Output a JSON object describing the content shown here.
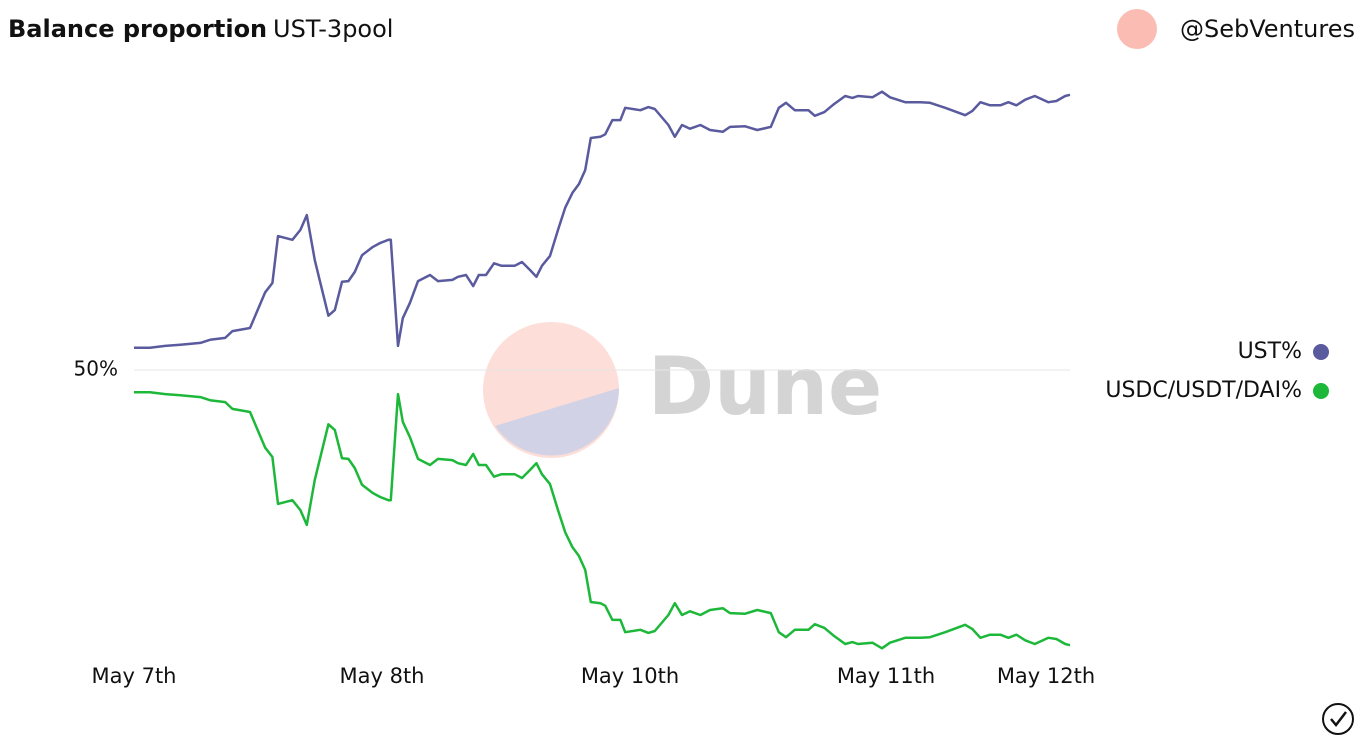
{
  "chart_data": {
    "type": "line",
    "title": "Balance proportion",
    "subtitle": "UST-3pool",
    "author": "@SebVentures",
    "watermark": "Dune",
    "x": [
      0,
      2,
      3.9,
      5.8,
      8.3,
      9.5,
      11.4,
      12.3,
      14.5,
      16.4,
      17.3,
      18,
      19.8,
      20.8,
      21.6,
      22.6,
      24.3,
      25.1,
      26,
      26.8,
      27.6,
      28.5,
      29.8,
      30.8,
      31.8,
      32.1,
      33,
      33.6,
      34.5,
      35.5,
      37,
      38,
      39.8,
      40.5,
      41.5,
      42.4,
      43.1,
      44,
      45,
      45.9,
      47.6,
      48.5,
      49.5,
      50.3,
      51,
      52,
      53,
      53.9,
      54.8,
      55.6,
      56.4,
      57.1,
      58.3,
      58.9,
      59.8,
      60.8,
      61.4,
      63.3,
      64.3,
      65.1,
      66.8,
      67.6,
      68.5,
      69.5,
      70.8,
      72,
      73.6,
      74.5,
      76.4,
      77.9,
      79.6,
      80.6,
      81.5,
      82.6,
      84.3,
      85.1,
      86.3,
      87.5,
      88.9,
      89.8,
      90.5,
      92.3,
      93.5,
      94.5,
      96.4,
      98.3,
      99.5,
      101.4,
      103.9,
      104.8,
      105.8,
      107,
      108.3,
      109.3,
      110.3,
      111.4,
      112.6,
      114.3,
      115.3,
      116.4,
      117
    ],
    "series": [
      {
        "name": "UST%",
        "color": "#5a5a9e",
        "values": [
          53.6,
          53.6,
          53.9,
          54.1,
          54.4,
          54.9,
          55.2,
          56.3,
          56.8,
          62.6,
          64.1,
          71.7,
          71.1,
          72.7,
          75.1,
          67.8,
          58.8,
          59.7,
          64.3,
          64.4,
          65.9,
          68.6,
          69.9,
          70.6,
          71.1,
          71.1,
          53.9,
          58.4,
          60.9,
          64.4,
          65.4,
          64.4,
          64.6,
          65.1,
          65.4,
          63.6,
          65.4,
          65.4,
          67.3,
          66.9,
          66.9,
          67.5,
          66.2,
          65.1,
          66.9,
          68.5,
          72.7,
          76.3,
          78.7,
          80.1,
          82.4,
          87.6,
          87.8,
          88.2,
          90.5,
          90.5,
          92.5,
          92.1,
          92.6,
          92.3,
          89.7,
          87.8,
          89.7,
          89.1,
          89.7,
          88.9,
          88.6,
          89.4,
          89.5,
          88.9,
          89.4,
          92.5,
          93.3,
          92.1,
          92.1,
          91.2,
          91.8,
          93.1,
          94.4,
          94.1,
          94.4,
          94.2,
          95.1,
          94.2,
          93.4,
          93.4,
          93.3,
          92.5,
          91.3,
          92,
          93.4,
          92.9,
          92.9,
          93.4,
          92.9,
          93.8,
          94.4,
          93.4,
          93.6,
          94.4,
          94.6
        ]
      },
      {
        "name": "USDC/USDT/DAI%",
        "color": "#1db83a",
        "values": [
          46.4,
          46.4,
          46.1,
          45.9,
          45.6,
          45.1,
          44.8,
          43.7,
          43.2,
          37.4,
          35.9,
          28.3,
          28.9,
          27.3,
          24.9,
          32.2,
          41.2,
          40.3,
          35.7,
          35.6,
          34.1,
          31.4,
          30.1,
          29.4,
          28.9,
          28.9,
          46.1,
          41.6,
          39.1,
          35.6,
          34.6,
          35.6,
          35.4,
          34.9,
          34.6,
          36.4,
          34.6,
          34.6,
          32.7,
          33.1,
          33.1,
          32.5,
          33.8,
          34.9,
          33.1,
          31.5,
          27.3,
          23.7,
          21.3,
          19.9,
          17.6,
          12.4,
          12.2,
          11.8,
          9.5,
          9.5,
          7.5,
          7.9,
          7.4,
          7.7,
          10.3,
          12.2,
          10.3,
          10.9,
          10.3,
          11.1,
          11.4,
          10.6,
          10.5,
          11.1,
          10.6,
          7.5,
          6.7,
          7.9,
          7.9,
          8.8,
          8.2,
          6.9,
          5.6,
          5.9,
          5.6,
          5.8,
          4.9,
          5.8,
          6.6,
          6.6,
          6.7,
          7.5,
          8.7,
          8,
          6.6,
          7.1,
          7.1,
          6.6,
          7.1,
          6.2,
          5.6,
          6.6,
          6.4,
          5.6,
          5.4
        ]
      }
    ],
    "xlim": [
      0,
      117
    ],
    "xticks": [
      {
        "value": 0,
        "label": "May 7th"
      },
      {
        "value": 31,
        "label": "May 8th"
      },
      {
        "value": 62,
        "label": "May 10th"
      },
      {
        "value": 94,
        "label": "May 11th"
      },
      {
        "value": 114,
        "label": "May 12th"
      }
    ],
    "ylim": [
      3,
      97
    ],
    "yticks": [
      {
        "value": 50,
        "label": "50%"
      }
    ],
    "grid": true,
    "legend": "right"
  }
}
